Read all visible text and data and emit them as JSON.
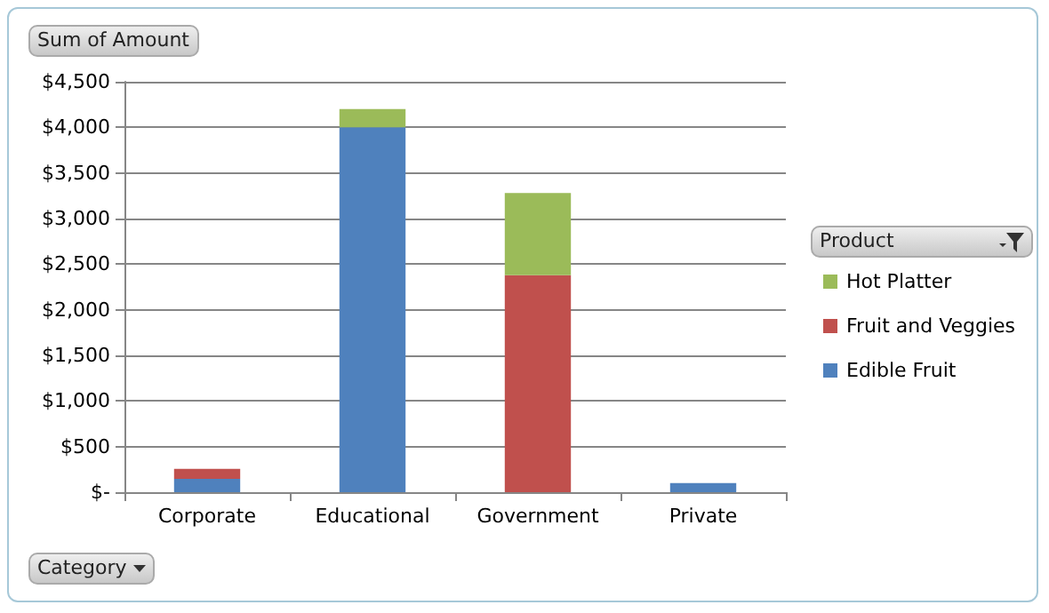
{
  "chart_data": {
    "type": "bar",
    "title": "Sum of Amount",
    "xlabel": "Category",
    "legend_title": "Product",
    "categories": [
      "Corporate",
      "Educational",
      "Government",
      "Private"
    ],
    "series": [
      {
        "name": "Edible Fruit",
        "color": "#4f81bd",
        "values": [
          145,
          4000,
          null,
          100
        ]
      },
      {
        "name": "Fruit and Veggies",
        "color": "#c0504d",
        "values": [
          110,
          null,
          2380,
          null
        ]
      },
      {
        "name": "Hot Platter",
        "color": "#9bbb59",
        "values": [
          null,
          200,
          900,
          null
        ]
      }
    ],
    "stacked": true,
    "ylim": [
      0,
      4500
    ],
    "yticks": [
      {
        "value": 0,
        "label": "$-"
      },
      {
        "value": 500,
        "label": "$500"
      },
      {
        "value": 1000,
        "label": "$1,000"
      },
      {
        "value": 1500,
        "label": "$1,500"
      },
      {
        "value": 2000,
        "label": "$2,000"
      },
      {
        "value": 2500,
        "label": "$2,500"
      },
      {
        "value": 3000,
        "label": "$3,000"
      },
      {
        "value": 3500,
        "label": "$3,500"
      },
      {
        "value": 4000,
        "label": "$4,000"
      },
      {
        "value": 4500,
        "label": "$4,500"
      }
    ],
    "grid": "y",
    "legend": "right"
  }
}
